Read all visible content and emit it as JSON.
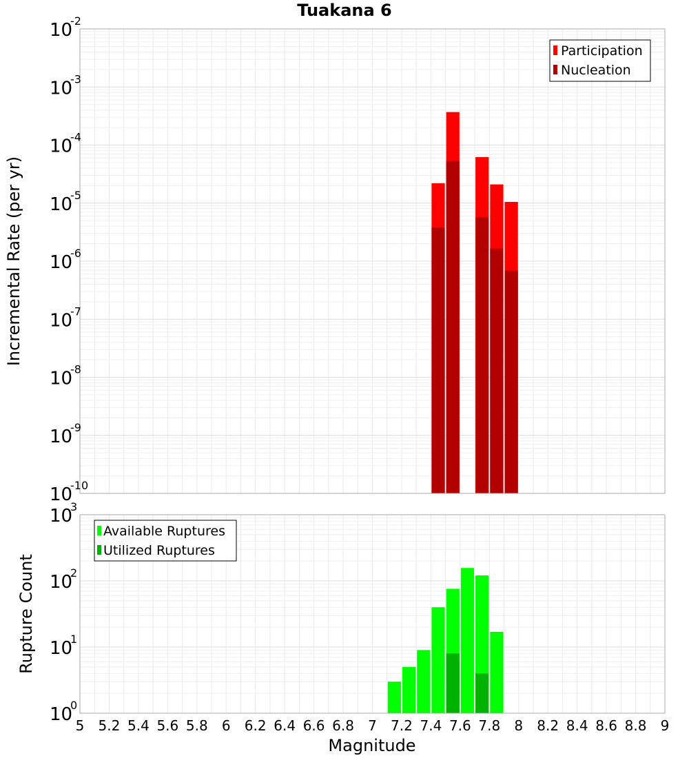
{
  "chart_data": [
    {
      "type": "bar",
      "title": "Tuakana 6",
      "xlabel": "Magnitude",
      "ylabel": "Incremental Rate (per yr)",
      "yscale": "log",
      "xlim": [
        5,
        9
      ],
      "ylim_exponents": [
        -10,
        -2
      ],
      "y_tick_labels": [
        {
          "exp": -2,
          "base": "10",
          "sup": "-2"
        },
        {
          "exp": -3,
          "base": "10",
          "sup": "-3"
        },
        {
          "exp": -4,
          "base": "10",
          "sup": "-4"
        },
        {
          "exp": -5,
          "base": "10",
          "sup": "-5"
        },
        {
          "exp": -6,
          "base": "10",
          "sup": "-6"
        },
        {
          "exp": -7,
          "base": "10",
          "sup": "-7"
        },
        {
          "exp": -8,
          "base": "10",
          "sup": "-8"
        },
        {
          "exp": -9,
          "base": "10",
          "sup": "-9"
        },
        {
          "exp": -10,
          "base": "10",
          "sup": "-10"
        }
      ],
      "legend_position": "top-right",
      "series": [
        {
          "name": "Participation",
          "color": "#ff0000",
          "x": [
            7.45,
            7.55,
            7.75,
            7.85,
            7.95
          ],
          "values": [
            2.2e-05,
            0.00037,
            6.2e-05,
            2.1e-05,
            1.05e-05
          ]
        },
        {
          "name": "Nucleation",
          "color": "#b20000",
          "x": [
            7.45,
            7.55,
            7.75,
            7.85,
            7.95
          ],
          "values": [
            3.8e-06,
            5.3e-05,
            5.7e-06,
            1.65e-06,
            6.9e-07
          ]
        }
      ]
    },
    {
      "type": "bar",
      "title": "",
      "xlabel": "Magnitude",
      "ylabel": "Rupture Count",
      "yscale": "log",
      "xlim": [
        5,
        9
      ],
      "ylim_exponents": [
        0,
        3
      ],
      "y_tick_labels": [
        {
          "exp": 3,
          "base": "10",
          "sup": "3"
        },
        {
          "exp": 2,
          "base": "10",
          "sup": "2"
        },
        {
          "exp": 1,
          "base": "10",
          "sup": "1"
        },
        {
          "exp": 0,
          "base": "10",
          "sup": "0"
        }
      ],
      "x_tick_labels": [
        "5",
        "5.2",
        "5.4",
        "5.6",
        "5.8",
        "6",
        "6.2",
        "6.4",
        "6.6",
        "6.8",
        "7",
        "7.2",
        "7.4",
        "7.6",
        "7.8",
        "8",
        "8.2",
        "8.4",
        "8.6",
        "8.8",
        "9"
      ],
      "legend_position": "top-left",
      "series": [
        {
          "name": "Available Ruptures",
          "color": "#00ff00",
          "x": [
            6.75,
            7.05,
            7.15,
            7.25,
            7.35,
            7.45,
            7.55,
            7.65,
            7.75,
            7.85
          ],
          "values": [
            1,
            1,
            3,
            5,
            9,
            40,
            76,
            157,
            121,
            17
          ]
        },
        {
          "name": "Utilized Ruptures",
          "color": "#00b200",
          "x": [
            7.45,
            7.55,
            7.75,
            7.85,
            7.95
          ],
          "values": [
            1,
            8,
            4,
            1,
            1
          ]
        }
      ]
    }
  ]
}
